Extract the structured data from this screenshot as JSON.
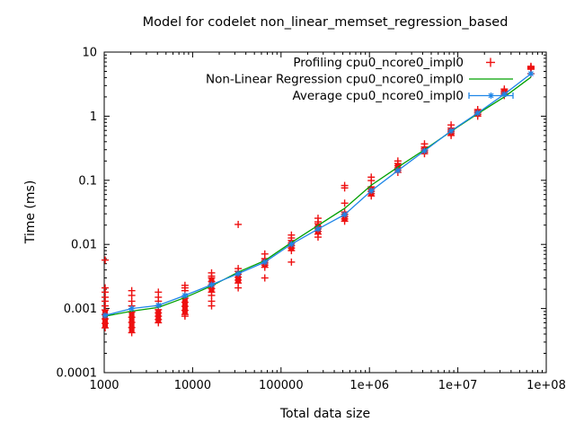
{
  "chart": {
    "title": "Model for codelet non_linear_memset_regression_based",
    "xlabel": "Total data size",
    "ylabel": "Time (ms)"
  },
  "chart_data": {
    "type": "scatter",
    "title": "Model for codelet non_linear_memset_regression_based",
    "x_axis": {
      "label": "Total data size",
      "scale": "log",
      "range": [
        1000,
        100000000
      ],
      "tick_values": [
        1000,
        10000,
        100000,
        1000000,
        10000000,
        100000000
      ],
      "tick_labels": [
        "1000",
        "10000",
        "100000",
        "1e+06",
        "1e+07",
        "1e+08"
      ]
    },
    "y_axis": {
      "label": "Time (ms)",
      "scale": "log",
      "range": [
        0.0001,
        10
      ],
      "tick_values": [
        0.0001,
        0.001,
        0.01,
        0.1,
        1,
        10
      ],
      "tick_labels": [
        "0.0001",
        "0.001",
        "0.01",
        "0.1",
        "1",
        "10"
      ]
    },
    "grid": false,
    "legend_position": "top-right-inside",
    "sizes": [
      1024,
      2048,
      4096,
      8192,
      16384,
      32768,
      65536,
      131072,
      262144,
      524288,
      1048576,
      2097152,
      4194304,
      8388608,
      16777216,
      33554432,
      67108864
    ],
    "series": [
      {
        "name": "Profiling cpu0_ncore0_impl0",
        "type": "scatter",
        "marker": "plus",
        "color": "#ee1111",
        "clusters": [
          {
            "x": 1024,
            "band": [
              0.0005,
              0.00095
            ],
            "points": [
              0.0011,
              0.0013,
              0.0015,
              0.0018,
              0.0021,
              0.0057
            ]
          },
          {
            "x": 2048,
            "band": [
              0.00042,
              0.00088
            ],
            "points": [
              0.0011,
              0.0013,
              0.0016,
              0.0019
            ]
          },
          {
            "x": 4096,
            "band": [
              0.0006,
              0.00096
            ],
            "points": [
              0.0011,
              0.0013,
              0.0015,
              0.0018
            ]
          },
          {
            "x": 8192,
            "band": [
              0.00081,
              0.00145
            ],
            "points": [
              0.0019,
              0.0021,
              0.0023,
              0.00076
            ]
          },
          {
            "x": 16384,
            "band": [
              0.0018,
              0.003
            ],
            "points": [
              0.0032,
              0.0036,
              0.0016,
              0.0013,
              0.0011
            ]
          },
          {
            "x": 32768,
            "band": [
              0.0025,
              0.0038
            ],
            "points": [
              0.0042,
              0.0021,
              0.0205
            ]
          },
          {
            "x": 65536,
            "band": [
              0.0044,
              0.006
            ],
            "points": [
              0.0071,
              0.003
            ]
          },
          {
            "x": 131072,
            "band": [
              0.008,
              0.0115
            ],
            "points": [
              0.0126,
              0.014,
              0.0053
            ]
          },
          {
            "x": 262144,
            "band": [
              0.0145,
              0.021
            ],
            "points": [
              0.0225,
              0.0256,
              0.013
            ]
          },
          {
            "x": 524288,
            "band": [
              0.023,
              0.032
            ],
            "points": [
              0.044,
              0.076,
              0.083
            ]
          },
          {
            "x": 1048576,
            "band": [
              0.057,
              0.079
            ],
            "points": [
              0.099,
              0.112
            ]
          },
          {
            "x": 2097152,
            "band": [
              0.133,
              0.183
            ],
            "points": [
              0.2
            ]
          },
          {
            "x": 4194304,
            "band": [
              0.26,
              0.33
            ],
            "points": [
              0.37
            ]
          },
          {
            "x": 8388608,
            "band": [
              0.5,
              0.65
            ],
            "points": [
              0.73
            ]
          },
          {
            "x": 16777216,
            "band": [
              1.0,
              1.27
            ],
            "points": []
          },
          {
            "x": 33554432,
            "band": [
              2.1,
              2.65
            ],
            "points": []
          },
          {
            "x": 67108864,
            "band": [
              5.4,
              6.0
            ],
            "points": [
              4.6
            ]
          }
        ]
      },
      {
        "name": "Non-Linear Regression cpu0_ncore0_impl0",
        "type": "line",
        "color": "#00a000",
        "values": [
          0.00076,
          0.00091,
          0.00104,
          0.00148,
          0.00225,
          0.0037,
          0.0056,
          0.0107,
          0.0198,
          0.0365,
          0.084,
          0.16,
          0.3,
          0.58,
          1.09,
          2.0,
          4.06
        ]
      },
      {
        "name": "Average cpu0_ncore0_impl0",
        "type": "line",
        "marker": "asterisk",
        "color": "#1e86e8",
        "values": [
          0.00078,
          0.001,
          0.00112,
          0.0016,
          0.00235,
          0.0035,
          0.0053,
          0.0101,
          0.0174,
          0.0292,
          0.0686,
          0.142,
          0.288,
          0.59,
          1.12,
          2.2,
          4.6
        ]
      }
    ]
  }
}
